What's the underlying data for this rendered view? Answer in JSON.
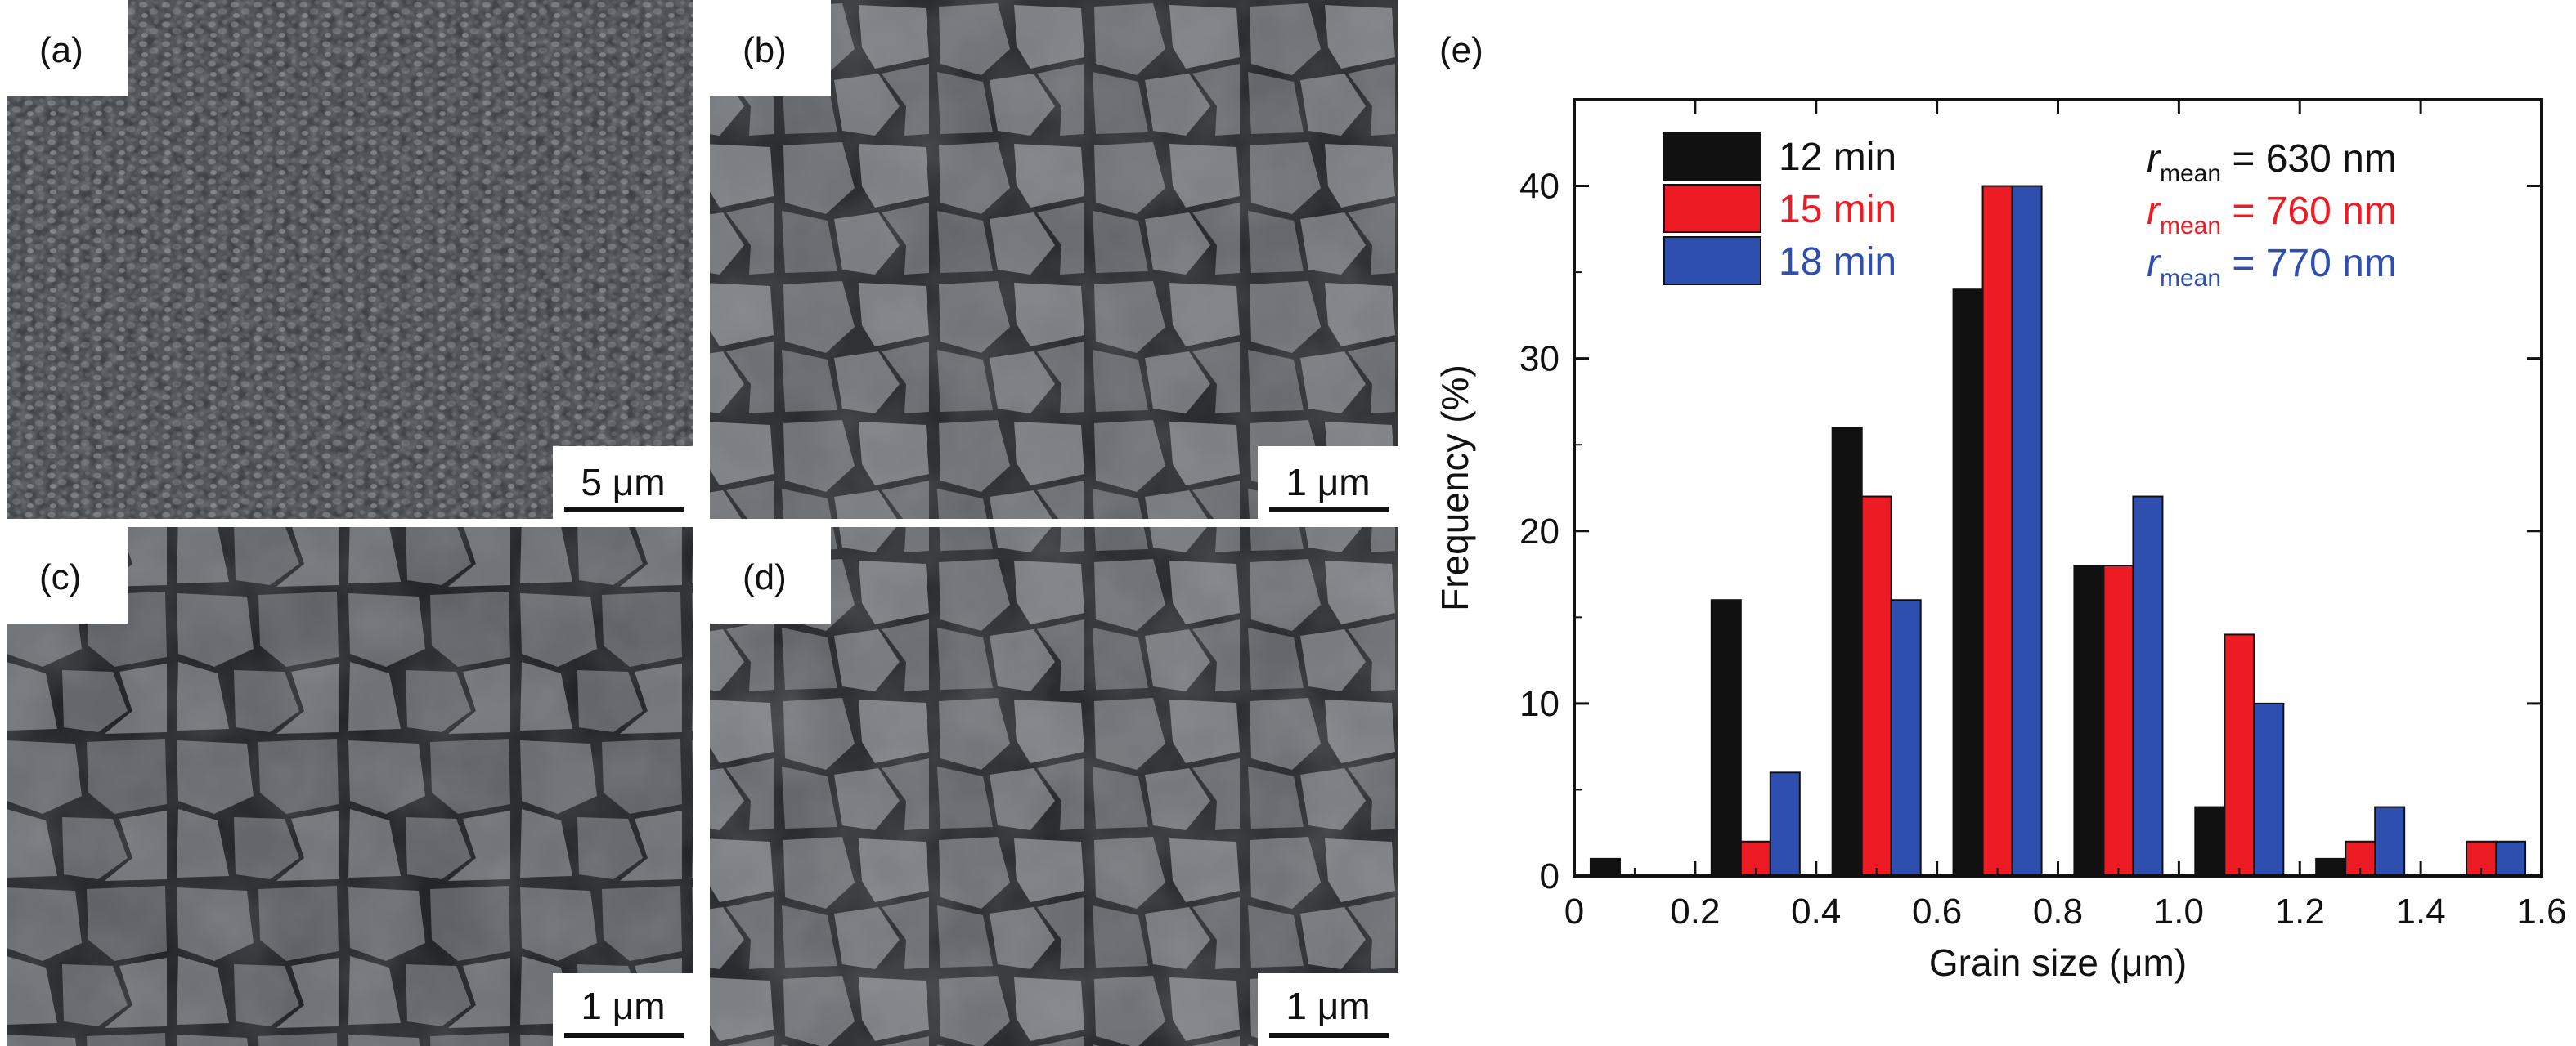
{
  "panels": [
    {
      "label": "(a)",
      "scale_bar": "5 μm"
    },
    {
      "label": "(b)",
      "scale_bar": "1 μm"
    },
    {
      "label": "(c)",
      "scale_bar": "1 μm"
    },
    {
      "label": "(d)",
      "scale_bar": "1 μm"
    }
  ],
  "chart_panel_label": "(e)",
  "chart_data": {
    "type": "bar",
    "title": "",
    "xlabel": "Grain size (μm)",
    "ylabel": "Frequency (%)",
    "xlim": [
      0,
      1.6
    ],
    "ylim": [
      0,
      45
    ],
    "xticks": [
      "0",
      "0.2",
      "0.4",
      "0.6",
      "0.8",
      "1.0",
      "1.2",
      "1.4",
      "1.6"
    ],
    "yticks": [
      "0",
      "10",
      "20",
      "30",
      "40"
    ],
    "categories": [
      0.1,
      0.3,
      0.5,
      0.7,
      0.9,
      1.1,
      1.3,
      1.5
    ],
    "series": [
      {
        "name": "12 min",
        "color": "#111111",
        "values": [
          1,
          16,
          26,
          34,
          18,
          4,
          1,
          0
        ]
      },
      {
        "name": "15 min",
        "color": "#ed1c24",
        "values": [
          0,
          2,
          22,
          40,
          18,
          14,
          2,
          2
        ]
      },
      {
        "name": "18 min",
        "color": "#2e4fb0",
        "values": [
          0,
          6,
          16,
          40,
          22,
          10,
          4,
          2
        ]
      }
    ],
    "legend_position": "top-left",
    "annotations": [
      {
        "r": "r",
        "sub": "mean",
        "text": " = 630 nm",
        "color": "#111111"
      },
      {
        "r": "r",
        "sub": "mean",
        "text": " = 760 nm",
        "color": "#ed1c24"
      },
      {
        "r": "r",
        "sub": "mean",
        "text": " = 770 nm",
        "color": "#2e4fb0"
      }
    ]
  }
}
